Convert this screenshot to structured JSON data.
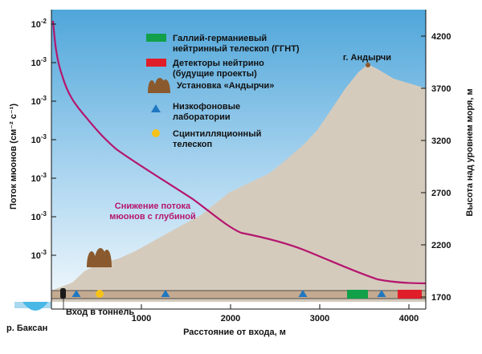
{
  "left_axis": {
    "title": "Поток мюонов (см⁻² с⁻¹)",
    "ticks": [
      {
        "base": "10",
        "exp": "-2"
      },
      {
        "base": "10",
        "exp": "-3"
      },
      {
        "base": "10",
        "exp": "-3"
      },
      {
        "base": "10",
        "exp": "-3"
      },
      {
        "base": "10",
        "exp": "-3"
      },
      {
        "base": "10",
        "exp": "-3"
      },
      {
        "base": "10",
        "exp": "-3"
      }
    ]
  },
  "right_axis": {
    "title": "Высота над уровнем моря, м",
    "ticks": [
      "4200",
      "3700",
      "3200",
      "2700",
      "2200",
      "1700"
    ]
  },
  "x_axis": {
    "title": "Расстояние от входа, м",
    "ticks": [
      "1000",
      "2000",
      "3000",
      "4000"
    ]
  },
  "legend": {
    "ggnt_line1": "Галлий-германиевый",
    "ggnt_line2": "нейтринный телескоп (ГГНТ)",
    "neutrino_line1": "Детекторы нейтрино",
    "neutrino_line2": "(будущие проекты)",
    "andyrchi_setup": "Установка «Андырчи»",
    "lowbg_line1": "Низкофоновые",
    "lowbg_line2": "лаборатории",
    "scint_line1": "Сцинтилляционный",
    "scint_line2": "телескоп"
  },
  "labels": {
    "peak": "г. Андырчи",
    "flux_note_line1": "Снижение потока",
    "flux_note_line2": "мюонов с глубиной",
    "tunnel_entrance": "Вход в тоннель",
    "river": "р. Баксан"
  },
  "colors": {
    "sky_top": "#4fa6da",
    "sky_bottom": "#eef7fc",
    "mountain": "#d5cbbd",
    "flux_curve": "#b5166e",
    "ggnt": "#12a04a",
    "neutrino": "#e01e2a",
    "andyrchi": "#8a5a2e",
    "lab": "#1f78c1",
    "scint": "#f6c21a",
    "river": "#49b8e6"
  }
}
